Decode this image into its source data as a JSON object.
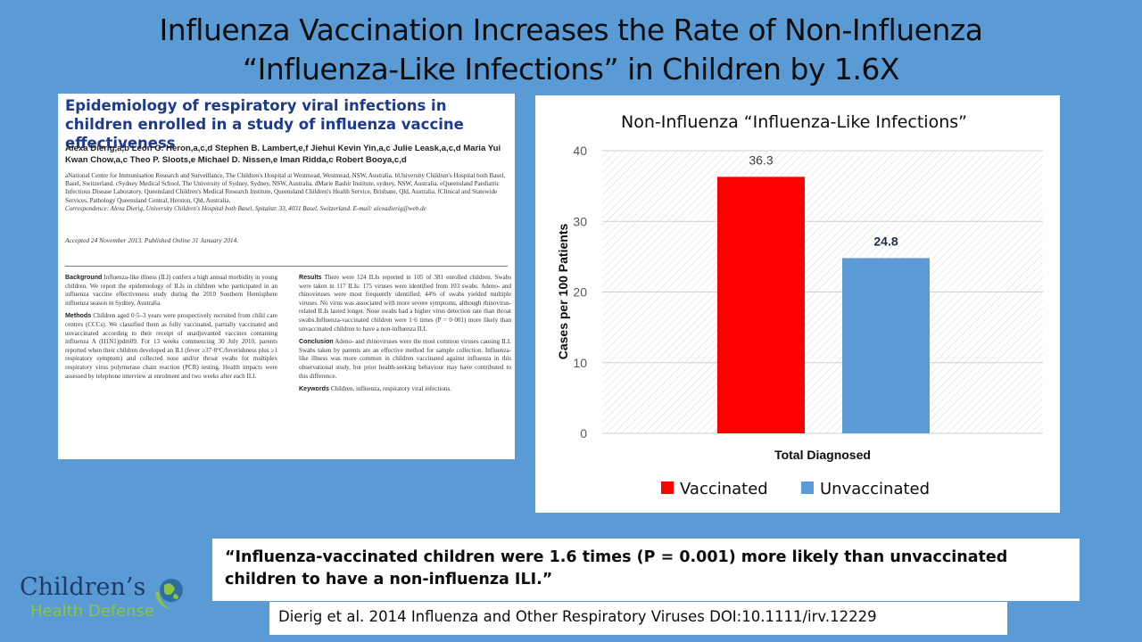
{
  "slide": {
    "title_line1": "Influenza Vaccination Increases the Rate of Non-Influenza",
    "title_line2": "“Influenza-Like Infections” in Children by 1.6X"
  },
  "paper": {
    "title": "Epidemiology of respiratory viral infections in children enrolled in a study of influenza vaccine effectiveness",
    "authors": "Alexa Dierig,a,b Leon G. Heron,a,c,d Stephen B. Lambert,e,f Jiehui Kevin Yin,a,c Julie Leask,a,c,d Maria Yui Kwan Chow,a,c Theo P. Sloots,e Michael D. Nissen,e Iman Ridda,c Robert Booya,c,d",
    "affiliations": "aNational Centre for Immunisation Research and Surveillance, The Children's Hospital at Westmead, Westmead, NSW, Australia. bUniversity Children's Hospital both Basel, Basel, Switzerland. cSydney Medical School, The University of Sydney, Sydney, NSW, Australia. dMarie Bashir Institute, sydney, NSW, Australia. eQueensland Paediatric Infectious Disease Laboratory, Queensland Children's Medical Research Institute, Queensland Children's Health Service, Brisbane, Qld, Australia. fClinical and Statewide Services, Pathology Queensland Central, Herston, Qld, Australia.",
    "correspondence": "Correspondence: Alexa Dierig, University Children's Hospital both Basel, Spitalstr. 33, 4031 Basel, Switzerland. E-mail: alexadierig@web.de",
    "accepted": "Accepted 24 November 2013. Published Online 31 January 2014.",
    "background_label": "Background",
    "background": "Influenza-like illness (ILI) confers a high annual morbidity in young children. We report the epidemiology of ILIs in children who participated in an influenza vaccine effectiveness study during the 2010 Southern Hemisphere influenza season in Sydney, Australia.",
    "methods_label": "Methods",
    "methods": "Children aged 0·5–3 years were prospectively recruited from child care centres (CCCs). We classified them as fully vaccinated, partially vaccinated and unvaccinated according to their receipt of unadjuvanted vaccines containing influenza A (H1N1)pdm09. For 13 weeks commencing 30 July 2010, parents reported when their children developed an ILI (fever ≥37·8°C/feverishness plus ≥1 respiratory symptom) and collected nose and/or throat swabs for multiplex respiratory virus polymerase chain reaction (PCR) testing. Health impacts were assessed by telephone interview at enrolment and two weeks after each ILI.",
    "results_label": "Results",
    "results": "There were 124 ILIs reported in 105 of 381 enrolled children. Swabs were taken in 117 ILIs: 175 viruses were identified from 103 swabs. Adeno- and rhinoviruses were most frequently identified; 44% of swabs yielded multiple viruses. No virus was associated with more severe symptoms, although rhinovirus-related ILIs lasted longer. Nose swabs had a higher virus detection rate than throat swabs.Influenza-vaccinated children were 1·6 times (P = 0·001) more likely than unvaccinated children to have a non-influenza ILI.",
    "conclusion_label": "Conclusion",
    "conclusion": "Adeno- and rhinoviruses were the most common viruses causing ILI. Swabs taken by parents are an effective method for sample collection. Influenza-like illness was more common in children vaccinated against influenza in this observational study, but prior health-seeking behaviour may have contributed to this difference.",
    "keywords_label": "Keywords",
    "keywords": "Children, influenza, respiratory viral infections."
  },
  "chart_data": {
    "type": "bar",
    "title": "Non-Influenza “Influenza-Like Infections”",
    "categories": [
      "Total Diagnosed"
    ],
    "series": [
      {
        "name": "Vaccinated",
        "values": [
          36.3
        ],
        "color": "#ff0000",
        "label": "36.3"
      },
      {
        "name": "Unvaccinated",
        "values": [
          24.8
        ],
        "color": "#5b9bd5",
        "label": "24.8"
      }
    ],
    "xlabel": "Total Diagnosed",
    "ylabel": "Cases per 100 Patients",
    "ylim": [
      0,
      40
    ],
    "yticks": [
      0,
      10,
      20,
      30,
      40
    ],
    "grid": true,
    "legend_position": "bottom"
  },
  "quote": {
    "line1": "“Influenza-vaccinated children were 1.6 times (P = 0.001) more likely than unvaccinated",
    "line2": "children to have a non-influenza ILI.”"
  },
  "citation": "Dierig et al. 2014 Influenza and Other Respiratory Viruses DOI:10.1111/irv.12229",
  "logo": {
    "line1": "Children’s",
    "line2": "Health Defense"
  },
  "colors": {
    "background": "#5b9bd5",
    "vaccinated": "#ff0000",
    "unvaccinated": "#5b9bd5"
  }
}
